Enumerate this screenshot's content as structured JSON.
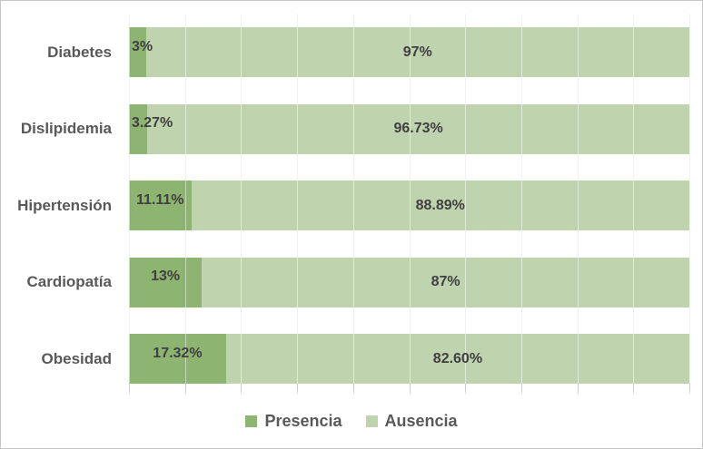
{
  "chart_data": {
    "type": "bar",
    "subtype": "horizontal-stacked-100",
    "title": "",
    "categories": [
      "Diabetes",
      "Dislipidemia",
      "Hipertensión",
      "Cardiopatía",
      "Obesidad"
    ],
    "series": [
      {
        "name": "Presencia",
        "color": "#8db470",
        "values": [
          3,
          3.27,
          11.11,
          13,
          17.32
        ],
        "labels": [
          "3%",
          "3.27%",
          "11.11%",
          "13%",
          "17.32%"
        ]
      },
      {
        "name": "Ausencia",
        "color": "#bfd4ae",
        "values": [
          97,
          96.73,
          88.89,
          87,
          82.6
        ],
        "labels": [
          "97%",
          "96.73%",
          "88.89%",
          "87%",
          "82.60%"
        ]
      }
    ],
    "xlim": [
      0,
      100
    ],
    "gridline_interval_pct": 10,
    "grid": true,
    "legend_position": "bottom"
  },
  "style": {
    "data_label_color": "#404040",
    "category_label_color": "#595959",
    "legend_text_color": "#595959",
    "gridline_color": "#e4e4e4",
    "gridline_overlay_color": "rgba(255,255,255,0.5)",
    "tick_color": "#c9c9c9",
    "border_color": "#c6c6c6",
    "background_color": "#ffffff"
  }
}
